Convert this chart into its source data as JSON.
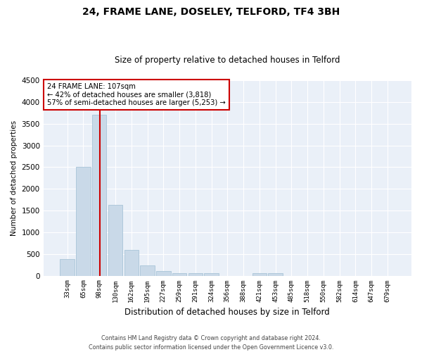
{
  "title": "24, FRAME LANE, DOSELEY, TELFORD, TF4 3BH",
  "subtitle": "Size of property relative to detached houses in Telford",
  "xlabel": "Distribution of detached houses by size in Telford",
  "ylabel": "Number of detached properties",
  "categories": [
    "33sqm",
    "65sqm",
    "98sqm",
    "130sqm",
    "162sqm",
    "195sqm",
    "227sqm",
    "259sqm",
    "291sqm",
    "324sqm",
    "356sqm",
    "388sqm",
    "421sqm",
    "453sqm",
    "485sqm",
    "518sqm",
    "550sqm",
    "582sqm",
    "614sqm",
    "647sqm",
    "679sqm"
  ],
  "values": [
    375,
    2500,
    3700,
    1630,
    600,
    240,
    105,
    60,
    55,
    55,
    0,
    0,
    55,
    55,
    0,
    0,
    0,
    0,
    0,
    0,
    0
  ],
  "bar_color": "#c9d9e8",
  "bar_edgecolor": "#a8c4d8",
  "vline_x_index": 2,
  "vline_color": "#cc0000",
  "annotation_line1": "24 FRAME LANE: 107sqm",
  "annotation_line2": "← 42% of detached houses are smaller (3,818)",
  "annotation_line3": "57% of semi-detached houses are larger (5,253) →",
  "annotation_box_color": "#ffffff",
  "annotation_box_edgecolor": "#cc0000",
  "ylim": [
    0,
    4500
  ],
  "yticks": [
    0,
    500,
    1000,
    1500,
    2000,
    2500,
    3000,
    3500,
    4000,
    4500
  ],
  "bg_color": "#eaf0f8",
  "footer_line1": "Contains HM Land Registry data © Crown copyright and database right 2024.",
  "footer_line2": "Contains public sector information licensed under the Open Government Licence v3.0.",
  "title_fontsize": 10,
  "subtitle_fontsize": 8.5
}
